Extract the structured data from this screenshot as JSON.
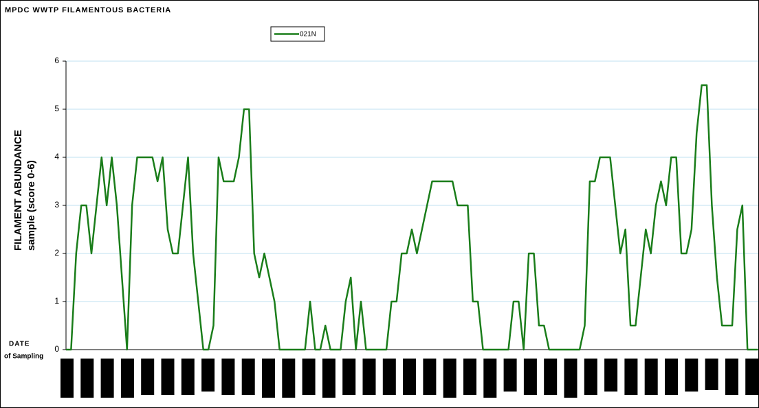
{
  "chart_data": {
    "type": "line",
    "title": "MPDC WWTP FILAMENTOUS BACTERIA",
    "y_label": [
      "FILAMENT ABUNDANCE",
      "sample (score 0-6)"
    ],
    "x_label": [
      "DATE",
      "of Sampling"
    ],
    "categories": [
      null,
      null,
      null,
      null,
      null,
      null,
      null,
      null,
      null,
      null,
      null,
      null,
      null,
      null,
      null,
      null,
      null,
      null,
      null,
      null,
      null,
      null,
      null,
      null,
      null,
      null,
      null,
      null,
      null,
      null,
      null,
      null,
      null,
      null,
      null,
      null,
      null,
      null,
      null,
      null,
      null,
      null,
      null,
      null,
      null,
      null,
      null,
      null,
      null,
      null,
      null,
      null,
      null,
      null,
      null,
      null,
      null,
      null,
      null,
      null,
      null,
      null,
      null,
      null,
      null,
      null,
      null,
      null,
      null,
      null,
      null,
      null,
      null,
      null,
      null,
      null,
      null,
      null,
      null,
      null,
      null,
      null,
      null,
      null,
      null,
      null,
      null,
      null,
      null,
      null,
      null,
      null,
      null,
      null,
      null,
      null,
      null,
      null,
      null,
      null,
      null,
      null,
      null,
      null,
      null,
      null,
      null,
      null,
      null,
      null,
      null,
      null,
      null,
      null,
      null,
      null,
      null,
      null,
      null,
      null,
      null,
      null,
      null,
      null,
      null,
      null,
      null,
      null,
      null,
      null,
      null,
      null,
      null,
      null,
      null,
      null,
      null
    ],
    "series": [
      {
        "name": "021N",
        "color": "#1a7d1a",
        "values": [
          0,
          0,
          2,
          3,
          3,
          2,
          3,
          4,
          3,
          4,
          3,
          1.5,
          0,
          3,
          4,
          4,
          4,
          4,
          3.5,
          4,
          2.5,
          2,
          2,
          3,
          4,
          2,
          1,
          0,
          0,
          0.5,
          4,
          3.5,
          3.5,
          3.5,
          4,
          5,
          5,
          2,
          1.5,
          2,
          1.5,
          1,
          0,
          0,
          0,
          0,
          0,
          0,
          1,
          0,
          0,
          0.5,
          0,
          0,
          0,
          1,
          1.5,
          0,
          1,
          0,
          0,
          0,
          0,
          0,
          1,
          1,
          2,
          2,
          2.5,
          2,
          2.5,
          3,
          3.5,
          3.5,
          3.5,
          3.5,
          3.5,
          3,
          3,
          3,
          1,
          1,
          0,
          0,
          0,
          0,
          0,
          0,
          1,
          1,
          0,
          2,
          2,
          0.5,
          0.5,
          0,
          0,
          0,
          0,
          0,
          0,
          0,
          0.5,
          3.5,
          3.5,
          4,
          4,
          4,
          3,
          2,
          2.5,
          0.5,
          0.5,
          1.5,
          2.5,
          2,
          3,
          3.5,
          3,
          4,
          4,
          2,
          2,
          2.5,
          4.5,
          5.5,
          5.5,
          3,
          1.5,
          0.5,
          0.5,
          0.5,
          2.5,
          3,
          0,
          0,
          0
        ]
      }
    ],
    "ylim": [
      0,
      6
    ],
    "yticks": [
      0,
      1,
      2,
      3,
      4,
      5,
      6
    ],
    "grid": true
  }
}
